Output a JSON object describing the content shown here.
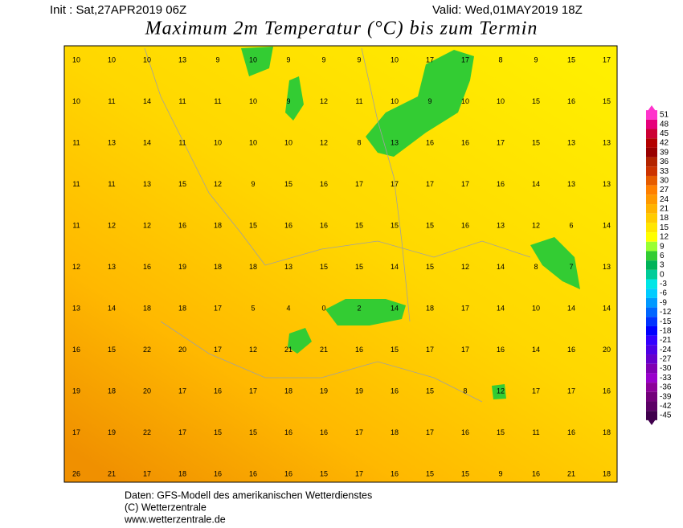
{
  "header": {
    "init": "Init : Sat,27APR2019 06Z",
    "valid": "Valid: Wed,01MAY2019 18Z",
    "title": "Maximum 2m Temperatur (°C) bis zum Termin"
  },
  "map": {
    "rows": [
      [
        10,
        10,
        10,
        13,
        9,
        10,
        9,
        9,
        9,
        10,
        17,
        17,
        8,
        9,
        15,
        17
      ],
      [
        10,
        11,
        14,
        11,
        11,
        10,
        9,
        12,
        11,
        10,
        9,
        10,
        10,
        15,
        16,
        15
      ],
      [
        11,
        13,
        14,
        11,
        10,
        10,
        10,
        12,
        8,
        13,
        16,
        16,
        17,
        15,
        13,
        13
      ],
      [
        11,
        11,
        13,
        15,
        12,
        9,
        15,
        16,
        17,
        17,
        17,
        17,
        16,
        14,
        13,
        13
      ],
      [
        11,
        12,
        12,
        16,
        18,
        15,
        16,
        16,
        15,
        15,
        15,
        16,
        13,
        12,
        6,
        14
      ],
      [
        12,
        13,
        16,
        19,
        18,
        18,
        13,
        15,
        15,
        14,
        15,
        12,
        14,
        8,
        7,
        13
      ],
      [
        13,
        14,
        18,
        18,
        17,
        5,
        4,
        0,
        2,
        14,
        18,
        17,
        14,
        10,
        14,
        14
      ],
      [
        16,
        15,
        22,
        20,
        17,
        12,
        21,
        21,
        16,
        15,
        17,
        17,
        16,
        14,
        16,
        20
      ],
      [
        19,
        18,
        20,
        17,
        16,
        17,
        18,
        19,
        19,
        16,
        15,
        8,
        12,
        17,
        17,
        16
      ],
      [
        17,
        19,
        22,
        17,
        15,
        15,
        16,
        16,
        17,
        18,
        17,
        16,
        15,
        11,
        16,
        18
      ],
      [
        26,
        21,
        17,
        18,
        16,
        16,
        16,
        15,
        17,
        16,
        15,
        15,
        9,
        16,
        21,
        18
      ]
    ]
  },
  "legend": {
    "labels": [
      51,
      48,
      45,
      42,
      39,
      36,
      33,
      30,
      27,
      24,
      21,
      18,
      15,
      12,
      9,
      6,
      3,
      0,
      -3,
      -6,
      -9,
      -12,
      -15,
      -18,
      -21,
      -24,
      -27,
      -30,
      -33,
      -36,
      -39,
      -42,
      -45
    ],
    "colors": [
      "#ff33cc",
      "#e6007a",
      "#cc0033",
      "#b30000",
      "#990000",
      "#b32400",
      "#cc3300",
      "#e65c00",
      "#ff8000",
      "#ff9900",
      "#ffb300",
      "#ffcc00",
      "#ffe600",
      "#ffff00",
      "#99ff33",
      "#33cc33",
      "#00b359",
      "#00cc99",
      "#00e6e6",
      "#00ccff",
      "#0099ff",
      "#0066ff",
      "#0033ff",
      "#0000ff",
      "#3300ff",
      "#4d00e6",
      "#6600cc",
      "#8000b3",
      "#9900cc",
      "#8c0099",
      "#73007a",
      "#5c0066",
      "#40004d"
    ]
  },
  "footer": {
    "line1": "Daten: GFS-Modell des amerikanischen Wetterdienstes",
    "line2": "(C) Wetterzentrale",
    "line3": "www.wetterzentrale.de"
  }
}
